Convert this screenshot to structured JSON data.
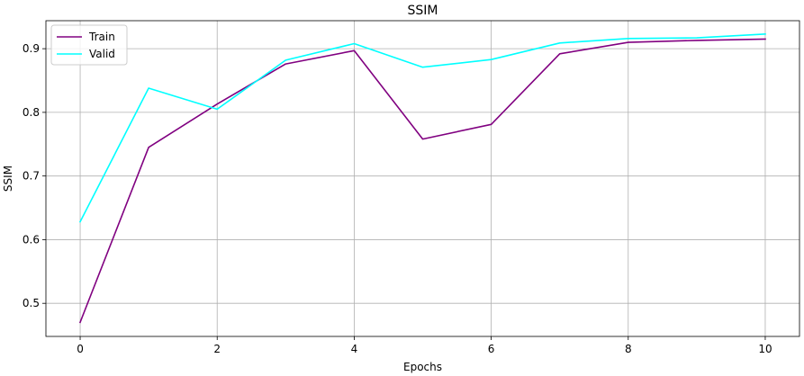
{
  "chart_data": {
    "type": "line",
    "title": "SSIM",
    "xlabel": "Epochs",
    "ylabel": "SSIM",
    "x": [
      0,
      1,
      2,
      3,
      4,
      5,
      6,
      7,
      8,
      9,
      10
    ],
    "xlim": [
      -0.5,
      10.5
    ],
    "ylim": [
      0.448,
      0.944
    ],
    "xticks": [
      0,
      2,
      4,
      6,
      8,
      10
    ],
    "yticks": [
      0.5,
      0.6,
      0.7,
      0.8,
      0.9
    ],
    "xtick_labels": [
      "0",
      "2",
      "4",
      "6",
      "8",
      "10"
    ],
    "ytick_labels": [
      "0.5",
      "0.6",
      "0.7",
      "0.8",
      "0.9"
    ],
    "grid": true,
    "legend_position": "top-left",
    "series": [
      {
        "name": "Train",
        "color": "#800080",
        "values": [
          0.47,
          0.745,
          0.813,
          0.876,
          0.897,
          0.758,
          0.781,
          0.892,
          0.91,
          0.913,
          0.915
        ]
      },
      {
        "name": "Valid",
        "color": "#00ffff",
        "values": [
          0.628,
          0.838,
          0.805,
          0.882,
          0.908,
          0.871,
          0.883,
          0.909,
          0.916,
          0.917,
          0.923
        ]
      }
    ]
  }
}
